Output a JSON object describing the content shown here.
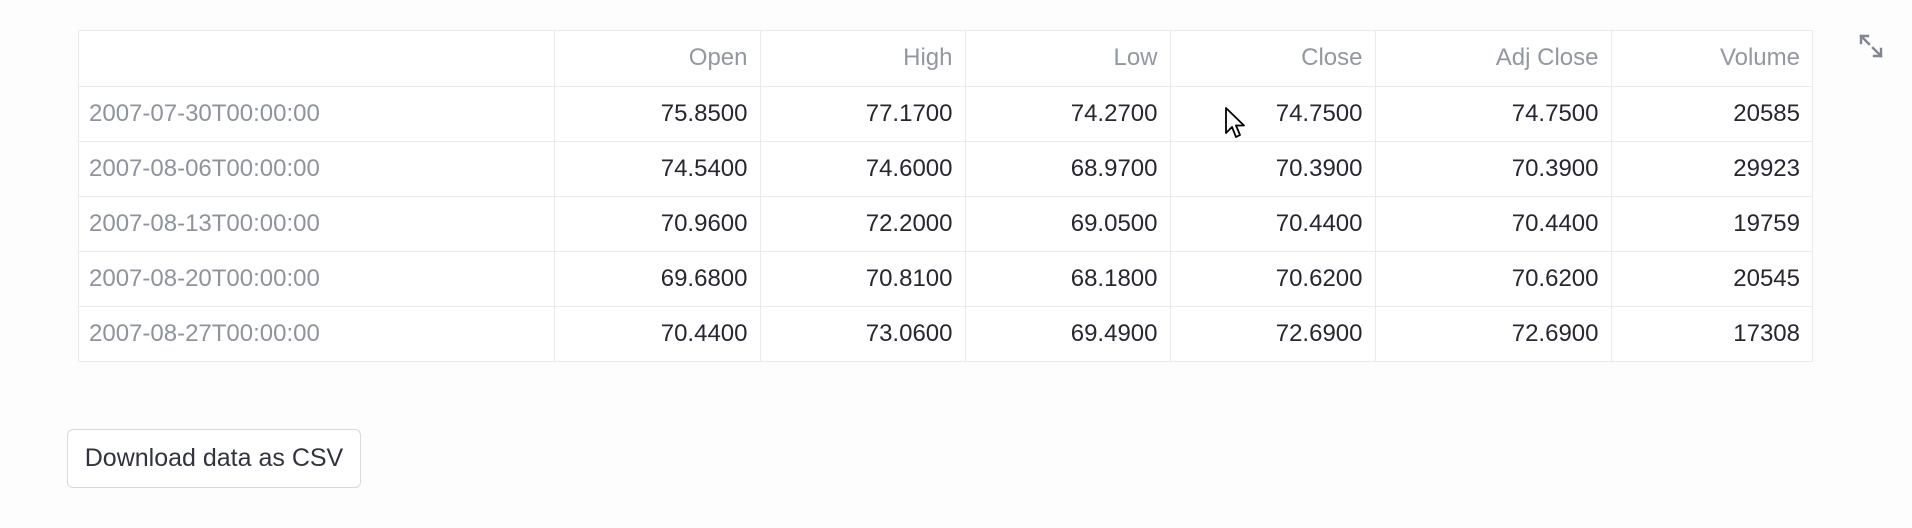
{
  "table": {
    "columns": [
      "",
      "Open",
      "High",
      "Low",
      "Close",
      "Adj Close",
      "Volume"
    ],
    "rows": [
      {
        "index": "2007-07-30T00:00:00",
        "open": "75.8500",
        "high": "77.1700",
        "low": "74.2700",
        "close": "74.7500",
        "adj_close": "74.7500",
        "volume": "20585"
      },
      {
        "index": "2007-08-06T00:00:00",
        "open": "74.5400",
        "high": "74.6000",
        "low": "68.9700",
        "close": "70.3900",
        "adj_close": "70.3900",
        "volume": "29923"
      },
      {
        "index": "2007-08-13T00:00:00",
        "open": "70.9600",
        "high": "72.2000",
        "low": "69.0500",
        "close": "70.4400",
        "adj_close": "70.4400",
        "volume": "19759"
      },
      {
        "index": "2007-08-20T00:00:00",
        "open": "69.6800",
        "high": "70.8100",
        "low": "68.1800",
        "close": "70.6200",
        "adj_close": "70.6200",
        "volume": "20545"
      },
      {
        "index": "2007-08-27T00:00:00",
        "open": "70.4400",
        "high": "73.0600",
        "low": "69.4900",
        "close": "72.6900",
        "adj_close": "72.6900",
        "volume": "17308"
      }
    ]
  },
  "toolbar": {
    "expand_icon": "fullscreen-expand-icon"
  },
  "download_button": {
    "label": "Download data as CSV"
  }
}
